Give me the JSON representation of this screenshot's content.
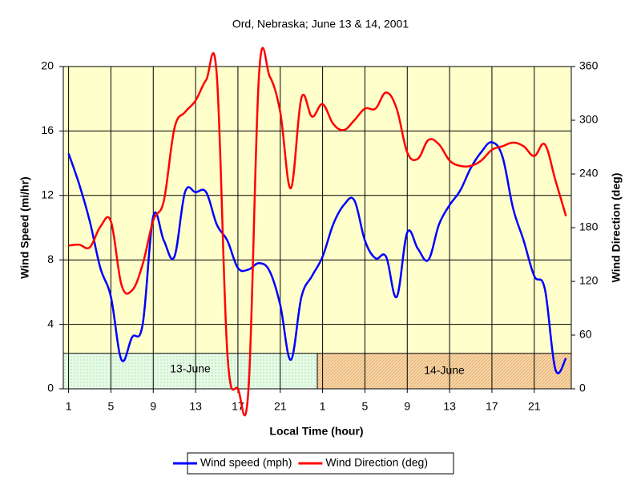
{
  "chart_data": {
    "type": "line",
    "title": "Ord, Nebraska; June 13 & 14, 2001",
    "x_label": "Local Time (hour)",
    "y_label": "Wind Speed (mi/hr)",
    "y2_label": "Wind Direction (deg)",
    "categories": [
      "1",
      null,
      null,
      null,
      "5",
      null,
      null,
      null,
      "9",
      null,
      null,
      null,
      "13",
      null,
      null,
      null,
      "17",
      null,
      null,
      null,
      "21",
      null,
      null,
      null,
      "1",
      null,
      null,
      null,
      "5",
      null,
      null,
      null,
      "9",
      null,
      null,
      null,
      "13",
      null,
      null,
      null,
      "17",
      null,
      null,
      null,
      "21",
      null,
      null,
      null
    ],
    "ylim": [
      0,
      20
    ],
    "yticks": [
      0,
      4,
      8,
      12,
      16,
      20
    ],
    "y2lim": [
      0,
      360
    ],
    "y2ticks": [
      0,
      60,
      120,
      180,
      240,
      300,
      360
    ],
    "grid": true,
    "plot_background": "#ffffcc",
    "day_labels": [
      "13-June",
      "14-June"
    ],
    "series": [
      {
        "name": "Wind speed (mph)",
        "color": "#0000ff",
        "axis": "y",
        "values": [
          14.6,
          12.7,
          10.4,
          7.5,
          5.7,
          1.8,
          3.2,
          4.0,
          10.7,
          9.2,
          8.2,
          12.2,
          12.2,
          12.2,
          10.2,
          9.2,
          7.5,
          7.4,
          7.8,
          7.3,
          5.2,
          1.8,
          5.7,
          7.0,
          8.2,
          10.2,
          11.4,
          11.7,
          9.2,
          8.1,
          8.2,
          5.7,
          9.7,
          8.7,
          8.0,
          10.2,
          11.4,
          12.3,
          13.7,
          14.7,
          15.3,
          14.4,
          11.2,
          9.2,
          7.0,
          6.2,
          1.2,
          1.9
        ]
      },
      {
        "name": "Wind Direction (deg)",
        "color": "#ff0000",
        "axis": "y2",
        "values": [
          160,
          161,
          158,
          181,
          187,
          116,
          110,
          139,
          188,
          210,
          291,
          309,
          322,
          345,
          351,
          40,
          0,
          0,
          352,
          349,
          309,
          224,
          325,
          304,
          318,
          296,
          289,
          300,
          313,
          313,
          331,
          313,
          264,
          257,
          278,
          273,
          255,
          249,
          249,
          255,
          267,
          271,
          275,
          271,
          260,
          273,
          233,
          193
        ]
      }
    ],
    "legend": "bottom"
  }
}
